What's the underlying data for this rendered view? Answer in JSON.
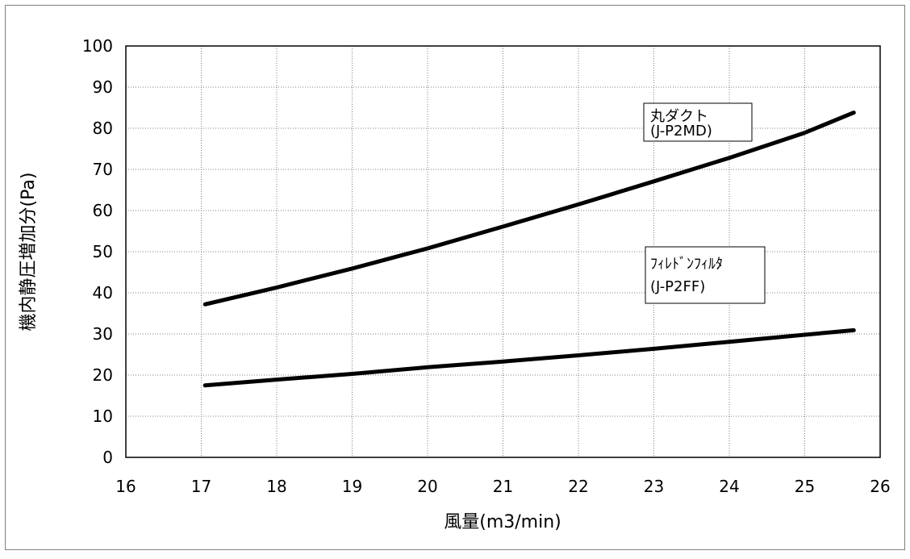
{
  "chart_data": {
    "type": "line",
    "title": "",
    "xlabel": "風量(m3/min)",
    "ylabel": "機内静圧増加分(Pa)",
    "xlim": [
      16,
      26
    ],
    "ylim": [
      0,
      100
    ],
    "xticks": [
      16,
      17,
      18,
      19,
      20,
      21,
      22,
      23,
      24,
      25,
      26
    ],
    "yticks": [
      0,
      10,
      20,
      30,
      40,
      50,
      60,
      70,
      80,
      90,
      100
    ],
    "grid": true,
    "legend": "none",
    "series": [
      {
        "name": "丸ダクト (J-P2MD)",
        "x": [
          17.05,
          18,
          19,
          20,
          21,
          22,
          23,
          24,
          25,
          25.65
        ],
        "y": [
          37.2,
          41.3,
          45.9,
          50.8,
          56.1,
          61.5,
          67.1,
          72.8,
          78.9,
          83.8
        ]
      },
      {
        "name": "フィレドンフィルタ (J-P2FF)",
        "x": [
          17.05,
          18,
          19,
          20,
          21,
          22,
          23,
          24,
          25,
          25.65
        ],
        "y": [
          17.5,
          18.9,
          20.3,
          21.9,
          23.3,
          24.8,
          26.4,
          28.1,
          29.8,
          30.9
        ]
      }
    ],
    "annotations": [
      {
        "line1": "丸ダクト",
        "line2": "(J-P2MD)"
      },
      {
        "line1": "ﾌｨﾚﾄﾞﾝﾌｨﾙﾀ",
        "line2": "(J-P2FF)"
      }
    ],
    "colors": {
      "line": "#000000",
      "grid": "#808080",
      "frame": "#000000",
      "outer_border": "#808080"
    }
  }
}
